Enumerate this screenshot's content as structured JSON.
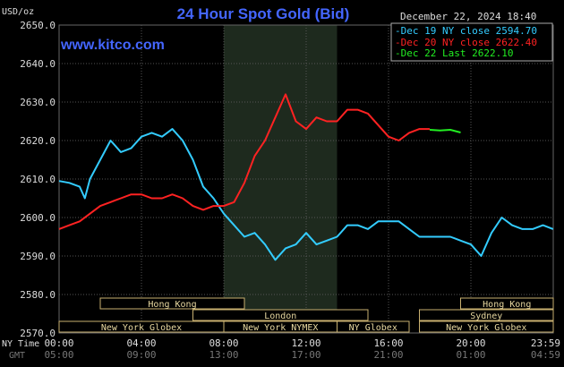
{
  "chart_data": {
    "type": "line",
    "title": "24 Hour Spot Gold (Bid)",
    "source": "www.kitco.com",
    "date_time": "December 22, 2024 18:40",
    "y_unit": "USD/oz",
    "ylim": [
      2570,
      2650
    ],
    "y_ticks": [
      "2650.0",
      "2640.0",
      "2630.0",
      "2620.0",
      "2610.0",
      "2600.0",
      "2590.0",
      "2580.0",
      "2570.0"
    ],
    "x_range_hours": [
      0,
      24
    ],
    "x_ticks_ny": [
      "00:00",
      "04:00",
      "08:00",
      "12:00",
      "16:00",
      "20:00",
      "23:59"
    ],
    "x_ticks_gmt": [
      "05:00",
      "09:00",
      "13:00",
      "17:00",
      "21:00",
      "01:00",
      "04:59"
    ],
    "x_axis_label_ny": "NY Time",
    "x_axis_label_gmt": "GMT",
    "grid": true,
    "legend_position": "top-right",
    "highlight_band_hours": [
      8,
      13.5
    ],
    "sessions": [
      {
        "label": "Hong Kong",
        "start": 2,
        "end": 9,
        "row": 0
      },
      {
        "label": "Hong Kong",
        "start": 19.5,
        "end": 24,
        "row": 0
      },
      {
        "label": "London",
        "start": 6.5,
        "end": 15,
        "row": 1
      },
      {
        "label": "Sydney",
        "start": 17.5,
        "end": 24,
        "row": 1
      },
      {
        "label": "New York Globex",
        "start": 0,
        "end": 8,
        "row": 2
      },
      {
        "label": "New York NYMEX",
        "start": 8,
        "end": 13.5,
        "row": 2
      },
      {
        "label": "NY Globex",
        "start": 13.5,
        "end": 17,
        "row": 2
      },
      {
        "label": "New York Globex",
        "start": 17.5,
        "end": 24,
        "row": 2
      }
    ],
    "series": [
      {
        "name": "Dec 19 NY close 2594.70",
        "color": "#33ccff",
        "x": [
          0,
          0.5,
          1.0,
          1.25,
          1.5,
          2.0,
          2.5,
          3.0,
          3.5,
          4.0,
          4.5,
          5.0,
          5.5,
          6.0,
          6.5,
          7.0,
          7.5,
          8.0,
          8.5,
          9.0,
          9.5,
          10.0,
          10.5,
          11.0,
          11.5,
          12.0,
          12.5,
          13.0,
          13.5,
          14.0,
          14.5,
          15.0,
          15.5,
          16.0,
          16.5,
          17.0,
          17.5,
          18.0,
          18.5,
          19.0,
          19.5,
          20.0,
          20.5,
          21.0,
          21.5,
          22.0,
          22.5,
          23.0,
          23.5,
          23.99
        ],
        "y": [
          2609.5,
          2609,
          2608,
          2605,
          2610,
          2615,
          2620,
          2617,
          2618,
          2621,
          2622,
          2621,
          2623,
          2620,
          2615,
          2608,
          2605,
          2601,
          2598,
          2595,
          2596,
          2593,
          2589,
          2592,
          2593,
          2596,
          2593,
          2594,
          2595,
          2598,
          2598,
          2597,
          2599,
          2599,
          2599,
          2597,
          2595,
          2595,
          2595,
          2595,
          2594,
          2593,
          2590,
          2596,
          2600,
          2598,
          2597,
          2597,
          2598,
          2597
        ]
      },
      {
        "name": "Dec 20 NY close 2622.40",
        "color": "#ff2222",
        "x": [
          0,
          0.5,
          1.0,
          1.5,
          2.0,
          2.5,
          3.0,
          3.5,
          4.0,
          4.5,
          5.0,
          5.5,
          6.0,
          6.5,
          7.0,
          7.5,
          8.0,
          8.5,
          9.0,
          9.5,
          10.0,
          10.5,
          11.0,
          11.5,
          12.0,
          12.5,
          13.0,
          13.5,
          14.0,
          14.5,
          15.0,
          15.5,
          16.0,
          16.5,
          17.0,
          17.5,
          18.0
        ],
        "y": [
          2597,
          2598,
          2599,
          2601,
          2603,
          2604,
          2605,
          2606,
          2606,
          2605,
          2605,
          2606,
          2605,
          2603,
          2602,
          2603,
          2603,
          2604,
          2609,
          2616,
          2620,
          2626,
          2632,
          2625,
          2623,
          2626,
          2625,
          2625,
          2628,
          2628,
          2627,
          2624,
          2621,
          2620,
          2622,
          2623,
          2623
        ]
      },
      {
        "name": "Dec 22 Last 2622.10",
        "color": "#22ee22",
        "x": [
          18.0,
          18.5,
          19.0,
          19.5
        ],
        "y": [
          2622.8,
          2622.6,
          2622.8,
          2622.1
        ]
      }
    ]
  }
}
